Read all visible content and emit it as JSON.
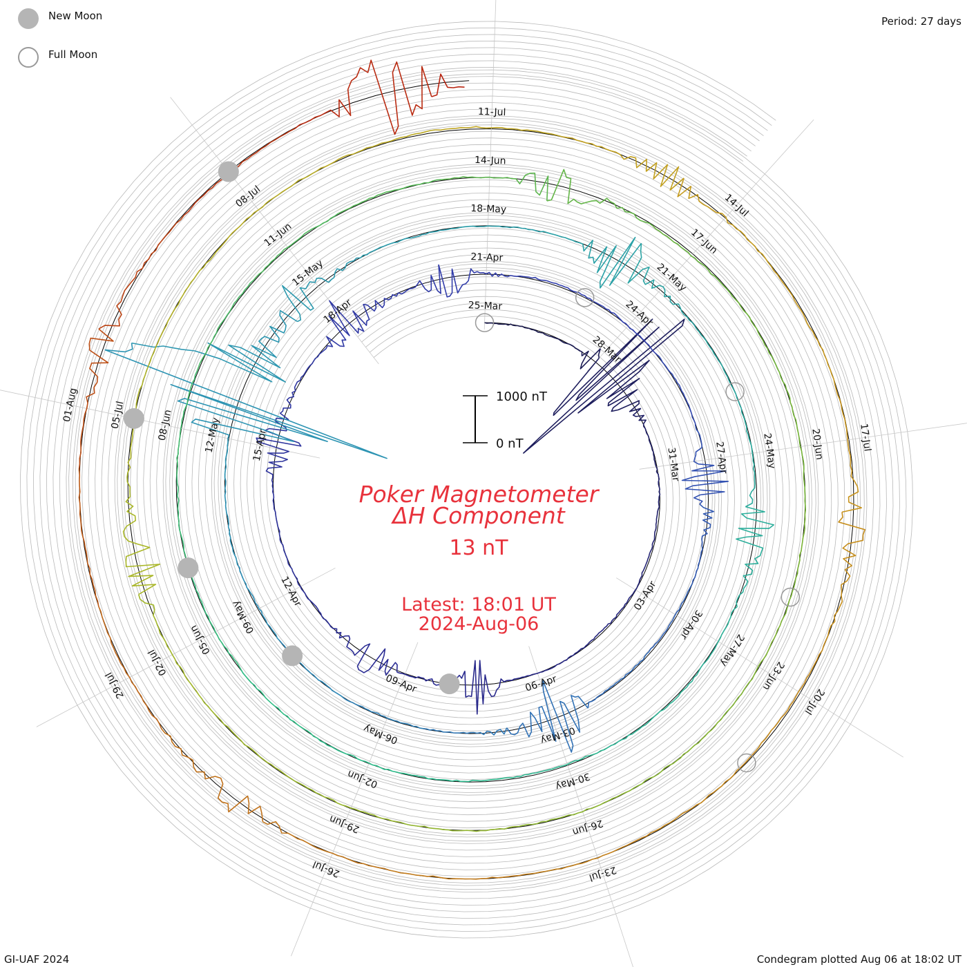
{
  "legend": {
    "new_moon_label": "New Moon",
    "full_moon_label": "Full Moon"
  },
  "header": {
    "period": "Period: 27 days"
  },
  "footer": {
    "credit": "GI-UAF 2024",
    "plotted": "Condegram plotted Aug 06 at 18:02 UT"
  },
  "colors": {
    "title": "#e8323c",
    "ring_black": "#000000",
    "ring_grey": "#b8b8b8",
    "moon_fill": "#b5b5b5",
    "moon_outline": "#999999"
  },
  "chart_data": {
    "type": "line",
    "subtype": "condegram (spiral time series)",
    "title_line1": "Poker Magnetometer",
    "title_line2": "ΔH Component",
    "current_value": "13 nT",
    "latest_time": "Latest: 18:01 UT",
    "latest_date": "2024-Aug-06",
    "period_days": 27,
    "scale_bar": {
      "top_label": "1000 nT",
      "bottom_label": "0 nT",
      "values_nT": [
        1000,
        0
      ]
    },
    "series": [
      {
        "color": "#1a1a4a",
        "rotation": 1,
        "labels": [
          "25-Mar",
          "28-Mar",
          "31-Mar",
          "03-Apr",
          "06-Apr",
          "09-Apr",
          "12-Apr",
          "15-Apr",
          "18-Apr"
        ],
        "label_days_from_start": [
          0,
          3,
          6,
          9,
          12,
          15,
          18,
          21,
          24
        ]
      },
      {
        "color": "#3442b0",
        "rotation": 2,
        "labels": [
          "21-Apr",
          "24-Apr",
          "27-Apr",
          "30-Apr",
          "03-May",
          "06-May",
          "09-May",
          "12-May",
          "15-May"
        ],
        "label_days_from_start": [
          27,
          30,
          33,
          36,
          39,
          42,
          45,
          48,
          51
        ]
      },
      {
        "color": "#2aa0a8",
        "rotation": 3,
        "labels": [
          "18-May",
          "21-May",
          "24-May",
          "27-May",
          "30-May",
          "02-Jun",
          "05-Jun",
          "08-Jun",
          "11-Jun"
        ],
        "label_days_from_start": [
          54,
          57,
          60,
          63,
          66,
          69,
          72,
          75,
          78
        ]
      },
      {
        "color": "#6db33a",
        "rotation": 4,
        "labels": [
          "14-Jun",
          "17-Jun",
          "20-Jun",
          "23-Jun",
          "26-Jun",
          "29-Jun",
          "02-Jul",
          "05-Jul",
          "08-Jul"
        ],
        "label_days_from_start": [
          81,
          84,
          87,
          90,
          93,
          96,
          99,
          102,
          105
        ]
      },
      {
        "color": "#c0701a",
        "rotation": 5,
        "labels": [
          "11-Jul",
          "14-Jul",
          "17-Jul",
          "20-Jul",
          "23-Jul",
          "26-Jul",
          "29-Jul",
          "01-Aug"
        ],
        "label_days_from_start": [
          108,
          111,
          114,
          117,
          120,
          123,
          126,
          129
        ]
      }
    ],
    "disturbances": [
      {
        "day": 3.3,
        "amplitude_nT": 1100
      },
      {
        "day": 3.0,
        "amplitude_nT": 300
      },
      {
        "day": 13.2,
        "amplitude_nT": 250
      },
      {
        "day": 15.6,
        "amplitude_nT": 200
      },
      {
        "day": 20.9,
        "amplitude_nT": 220
      },
      {
        "day": 23.8,
        "amplitude_nT": 230
      },
      {
        "day": 26.0,
        "amplitude_nT": 200
      },
      {
        "day": 33.2,
        "amplitude_nT": 260
      },
      {
        "day": 38.7,
        "amplitude_nT": 330
      },
      {
        "day": 48.5,
        "amplitude_nT": 1700
      },
      {
        "day": 50.4,
        "amplitude_nT": 200
      },
      {
        "day": 56.0,
        "amplitude_nT": 280
      },
      {
        "day": 61.0,
        "amplitude_nT": 200
      },
      {
        "day": 81.8,
        "amplitude_nT": 200
      },
      {
        "day": 100.0,
        "amplitude_nT": 200
      },
      {
        "day": 110.0,
        "amplitude_nT": 120
      },
      {
        "day": 114.8,
        "amplitude_nT": 130
      },
      {
        "day": 124.0,
        "amplitude_nT": 120
      },
      {
        "day": 129.5,
        "amplitude_nT": 120
      },
      {
        "day": 133.7,
        "amplitude_nT": 400
      }
    ],
    "new_moons": [
      "2024-04-08",
      "2024-05-08",
      "2024-06-06",
      "2024-07-05",
      "2024-08-04"
    ],
    "full_moons": [
      "2024-03-25",
      "2024-04-23",
      "2024-05-23",
      "2024-06-22",
      "2024-07-21"
    ],
    "grid": true
  }
}
